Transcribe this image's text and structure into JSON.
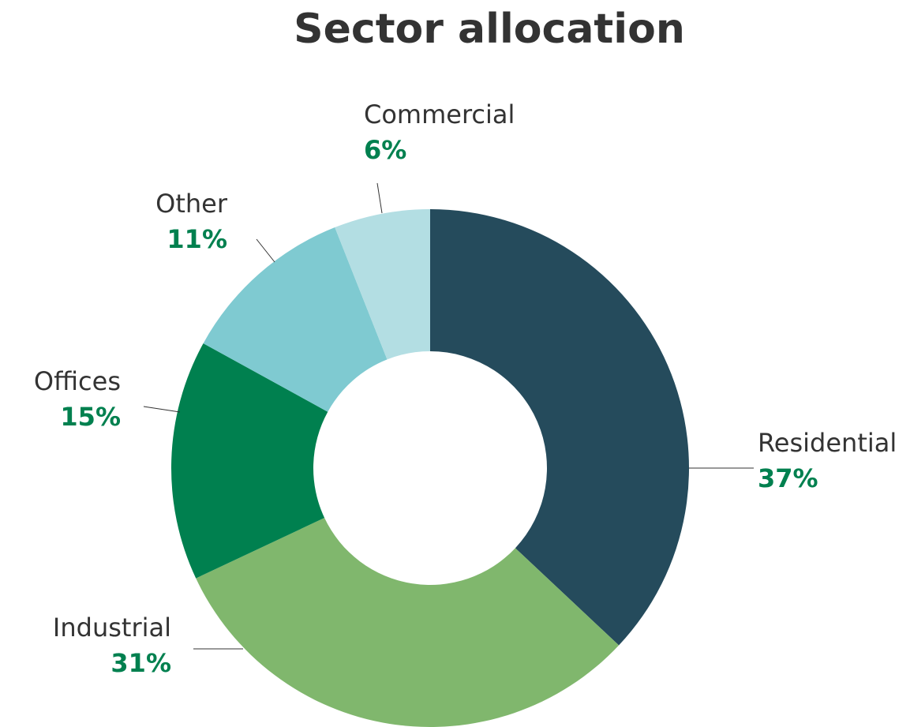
{
  "chart_data": {
    "type": "pie",
    "title": "Sector allocation",
    "categories": [
      "Residential",
      "Industrial",
      "Offices",
      "Other",
      "Commercial"
    ],
    "values": [
      37,
      31,
      15,
      11,
      6
    ],
    "value_labels": [
      "37%",
      "31%",
      "15%",
      "11%",
      "6%"
    ],
    "colors": [
      "#254b5c",
      "#80b76d",
      "#00804f",
      "#7fcad1",
      "#b3dee3"
    ]
  }
}
